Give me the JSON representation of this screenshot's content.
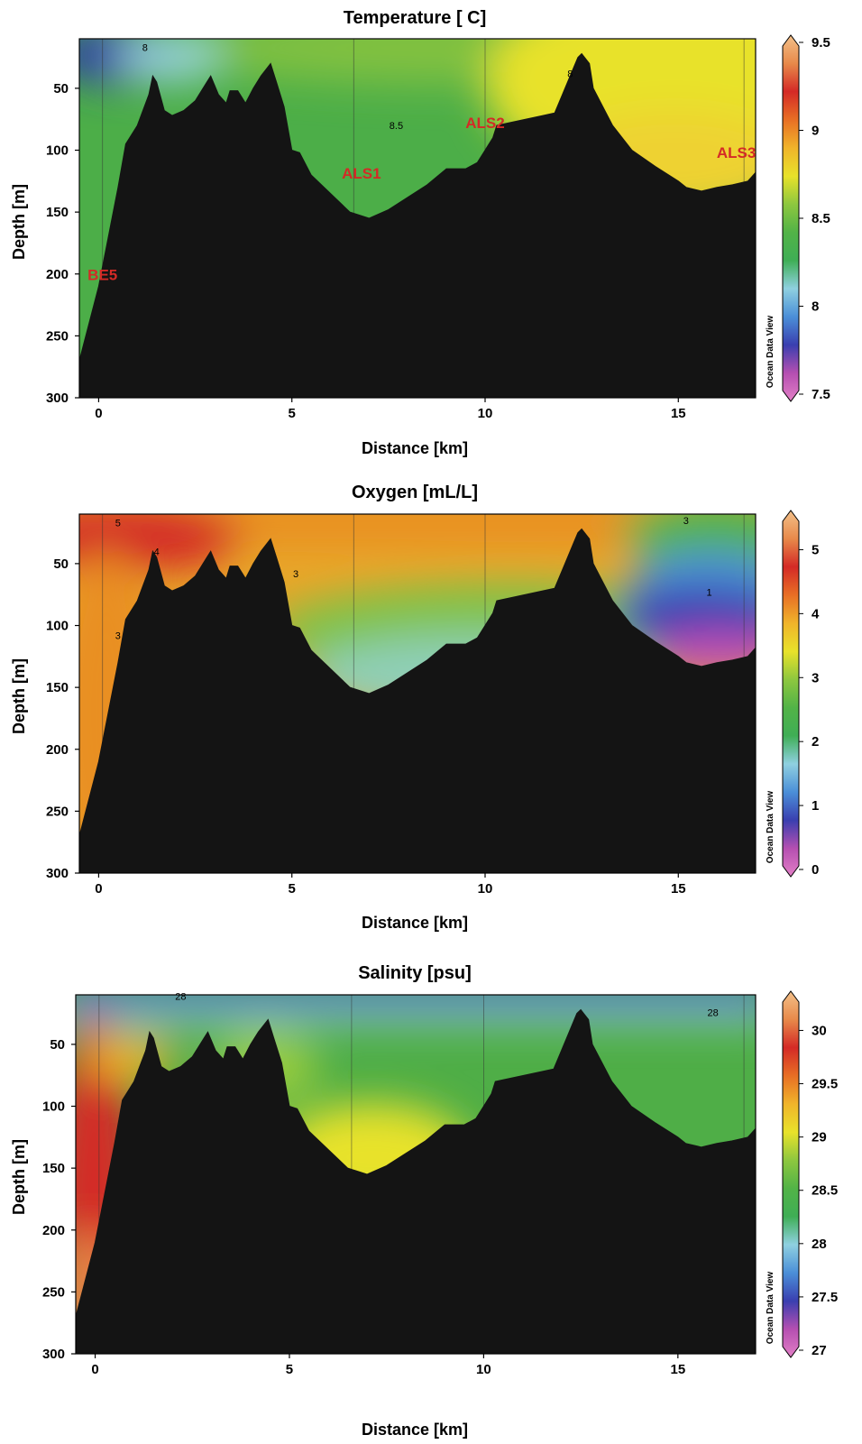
{
  "chart_data": [
    {
      "type": "heatmap",
      "title": "Temperature [ C]",
      "xlabel": "Distance [km]",
      "ylabel": "Depth [m]",
      "xlim": [
        -0.5,
        17
      ],
      "ylim": [
        300,
        10
      ],
      "x_ticks": [
        "0",
        "5",
        "10",
        "15"
      ],
      "x_tick_values": [
        0,
        5,
        10,
        15
      ],
      "y_ticks": [
        "50",
        "100",
        "150",
        "200",
        "250",
        "300"
      ],
      "y_tick_values": [
        50,
        100,
        150,
        200,
        250,
        300
      ],
      "colorbar": {
        "min": 7.5,
        "max": 9.5,
        "ticks": [
          "9.5",
          "9",
          "8.5",
          "8",
          "7.5"
        ],
        "tick_values": [
          9.5,
          9,
          8.5,
          8,
          7.5
        ]
      },
      "watermark": "Ocean Data View",
      "contour_labels": [
        {
          "text": "8",
          "x": 1.2,
          "y": 20
        },
        {
          "text": "8.5",
          "x": 7.7,
          "y": 83
        },
        {
          "text": "8",
          "x": 12.2,
          "y": 41
        }
      ],
      "stations": [
        {
          "name": "BE5",
          "x": 0.1,
          "y": 205
        },
        {
          "name": "ALS1",
          "x": 6.8,
          "y": 123
        },
        {
          "name": "ALS2",
          "x": 10.0,
          "y": 82
        },
        {
          "name": "ALS3",
          "x": 16.5,
          "y": 106
        }
      ]
    },
    {
      "type": "heatmap",
      "title": "Oxygen [mL/L]",
      "xlabel": "Distance [km]",
      "ylabel": "Depth [m]",
      "xlim": [
        -0.5,
        17
      ],
      "ylim": [
        300,
        10
      ],
      "x_ticks": [
        "0",
        "5",
        "10",
        "15"
      ],
      "x_tick_values": [
        0,
        5,
        10,
        15
      ],
      "y_ticks": [
        "50",
        "100",
        "150",
        "200",
        "250",
        "300"
      ],
      "y_tick_values": [
        50,
        100,
        150,
        200,
        250,
        300
      ],
      "colorbar": {
        "min": 0,
        "max": 5.5,
        "ticks": [
          "5",
          "4",
          "3",
          "2",
          "1",
          "0"
        ],
        "tick_values": [
          5,
          4,
          3,
          2,
          1,
          0
        ]
      },
      "watermark": "Ocean Data View",
      "contour_labels": [
        {
          "text": "5",
          "x": 0.5,
          "y": 20
        },
        {
          "text": "4",
          "x": 1.5,
          "y": 43
        },
        {
          "text": "3",
          "x": 5.1,
          "y": 61
        },
        {
          "text": "3",
          "x": 0.5,
          "y": 111
        },
        {
          "text": "3",
          "x": 15.2,
          "y": 18
        },
        {
          "text": "1",
          "x": 15.8,
          "y": 76
        }
      ]
    },
    {
      "type": "heatmap",
      "title": "Salinity [psu]",
      "xlabel": "Distance [km]",
      "ylabel": "Depth [m]",
      "xlim": [
        -0.5,
        17
      ],
      "ylim": [
        300,
        10
      ],
      "x_ticks": [
        "0",
        "5",
        "10",
        "15"
      ],
      "x_tick_values": [
        0,
        5,
        10,
        15
      ],
      "y_ticks": [
        "50",
        "100",
        "150",
        "200",
        "250",
        "300"
      ],
      "y_tick_values": [
        50,
        100,
        150,
        200,
        250,
        300
      ],
      "colorbar": {
        "min": 27,
        "max": 30.3,
        "ticks": [
          "30",
          "29.5",
          "29",
          "28.5",
          "28",
          "27.5",
          "27"
        ],
        "tick_values": [
          30,
          29.5,
          29,
          28.5,
          28,
          27.5,
          27
        ]
      },
      "watermark": "Ocean Data View",
      "contour_labels": [
        {
          "text": "28",
          "x": 2.2,
          "y": 14
        },
        {
          "text": "28",
          "x": 15.9,
          "y": 27
        }
      ]
    }
  ],
  "bathymetry": {
    "x_km": [
      -0.5,
      0,
      0.5,
      0.7,
      1.0,
      1.3,
      1.4,
      1.5,
      1.7,
      1.9,
      2.2,
      2.5,
      2.8,
      2.9,
      3.1,
      3.3,
      3.4,
      3.6,
      3.8,
      4.0,
      4.2,
      4.45,
      4.6,
      4.8,
      5.0,
      5.2,
      5.5,
      6.5,
      7.0,
      7.5,
      8.0,
      8.5,
      9.0,
      9.5,
      9.8,
      10.0,
      10.2,
      10.3,
      11.8,
      12.0,
      12.2,
      12.4,
      12.5,
      12.7,
      12.8,
      13.3,
      13.8,
      14.4,
      15.0,
      15.2,
      15.6,
      16.0,
      16.4,
      16.8,
      17.0
    ],
    "depth_m": [
      270,
      210,
      130,
      95,
      80,
      55,
      40,
      45,
      68,
      72,
      68,
      60,
      45,
      40,
      55,
      62,
      52,
      52,
      62,
      50,
      40,
      30,
      45,
      65,
      100,
      102,
      120,
      150,
      155,
      148,
      138,
      128,
      115,
      115,
      110,
      100,
      90,
      80,
      70,
      55,
      40,
      25,
      22,
      30,
      50,
      80,
      100,
      113,
      125,
      130,
      133,
      130,
      128,
      125,
      118
    ]
  }
}
